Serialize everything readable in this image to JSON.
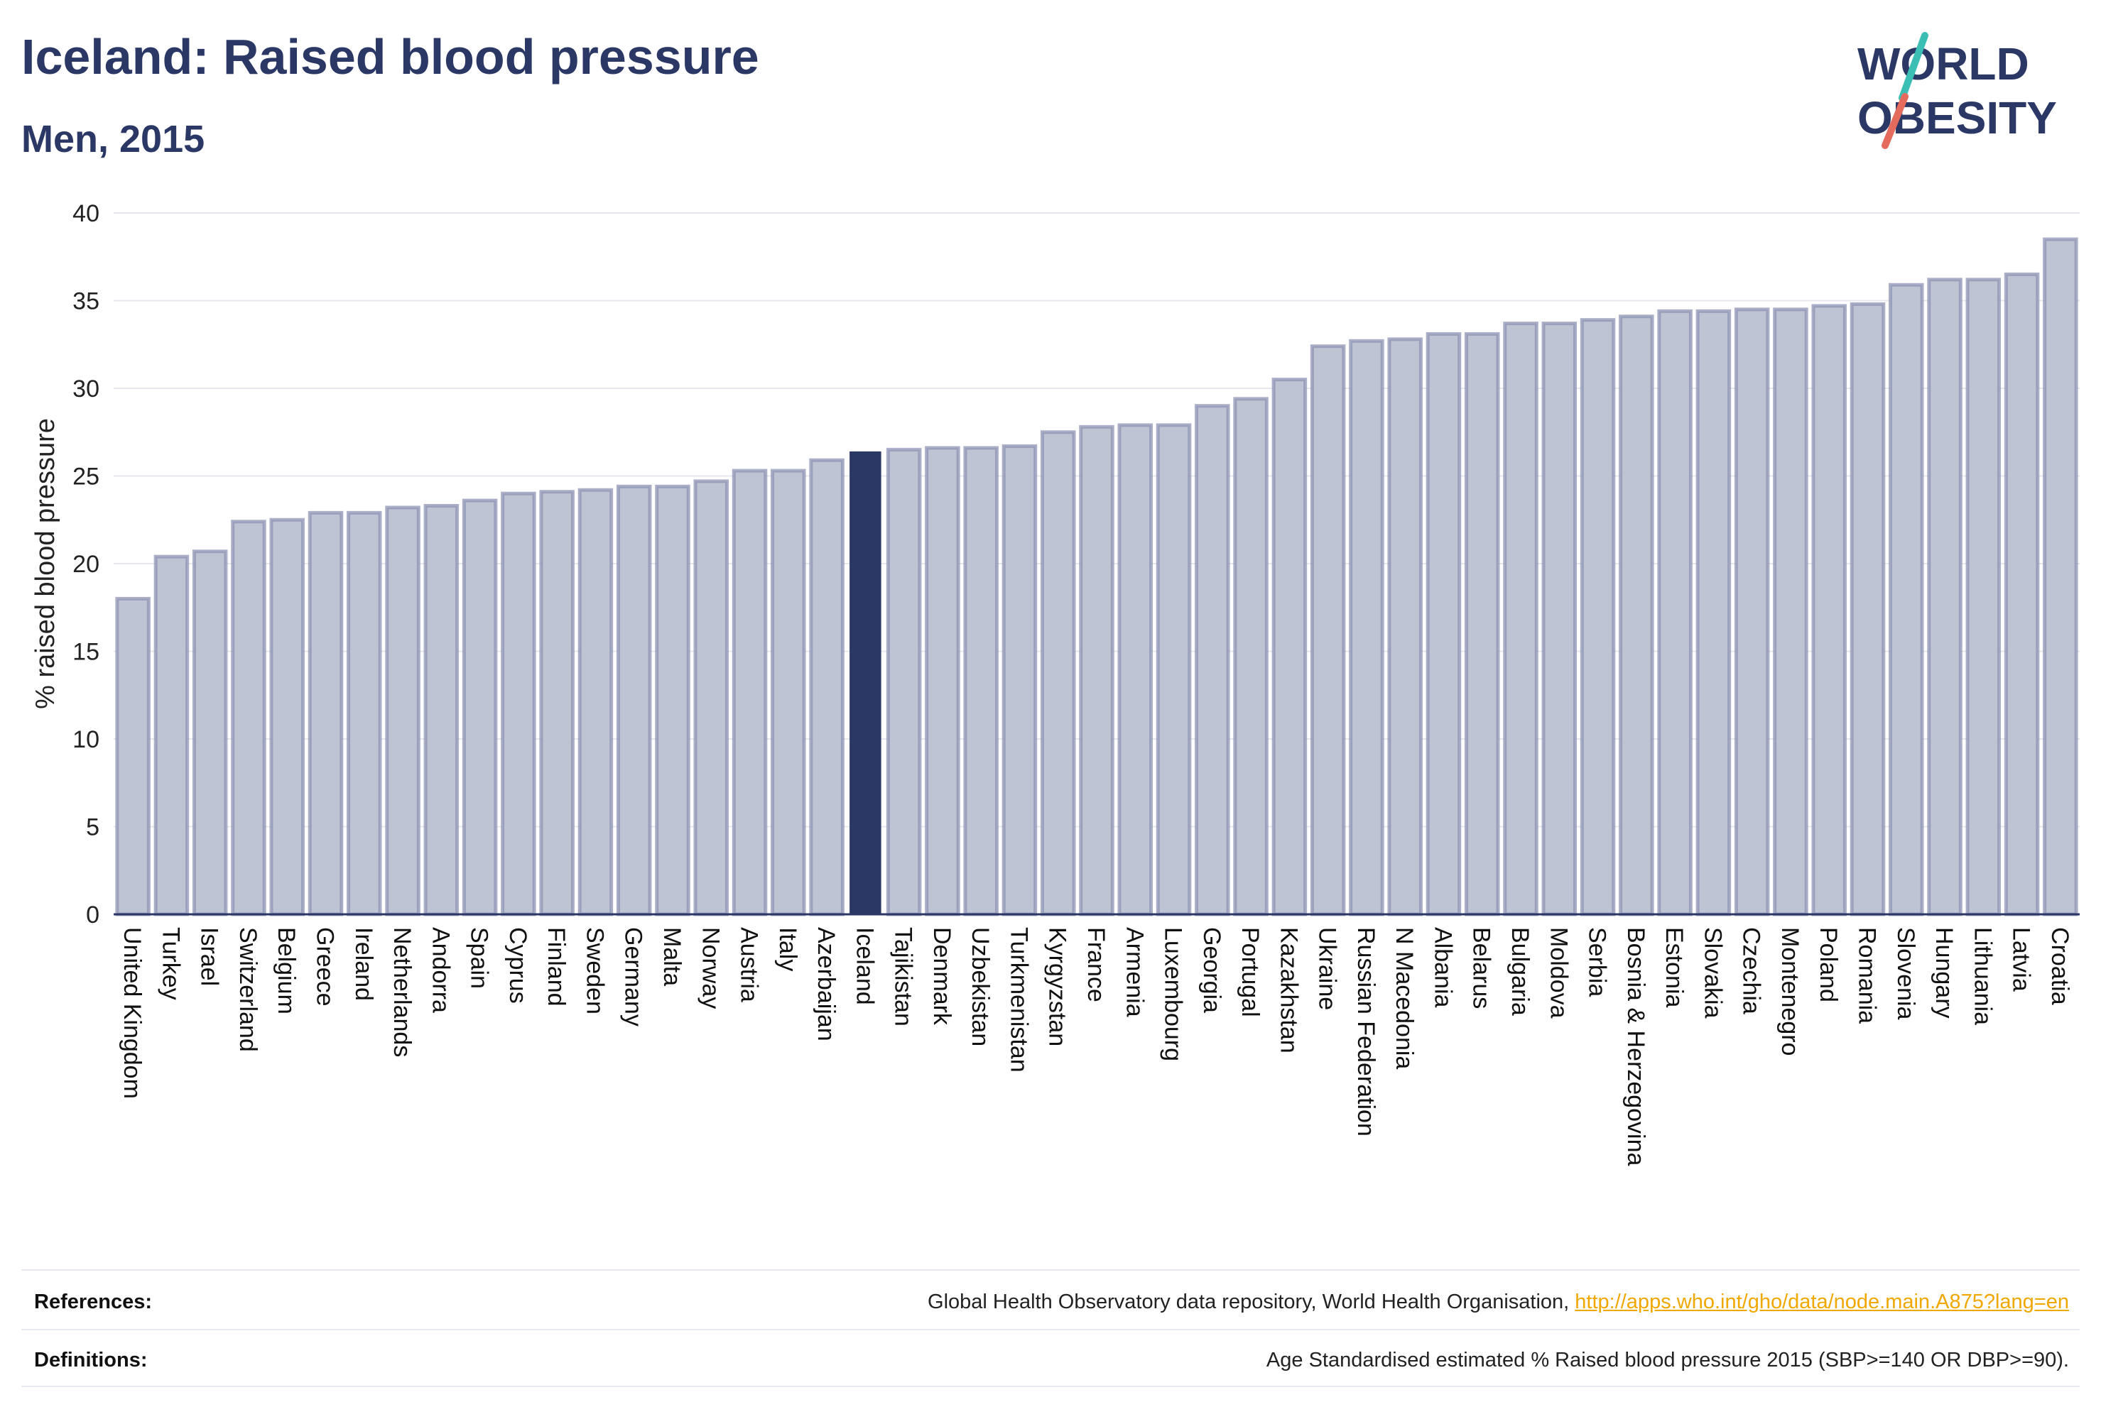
{
  "header": {
    "title": "Iceland: Raised blood pressure",
    "subtitle": "Men, 2015"
  },
  "logo": {
    "line1": "WORLD",
    "line2": "OBESITY",
    "accent_colors": [
      "#3bbfb4",
      "#e56b5d"
    ]
  },
  "colors": {
    "bar": "#bfc4d4",
    "bar_border": "#8d94b4",
    "highlight": "#2b3866",
    "text_primary": "#2b3866",
    "link": "#f0a800"
  },
  "chart_data": {
    "type": "bar",
    "highlight": "Iceland",
    "ylabel": "% raised blood pressure",
    "ylim": [
      0,
      40
    ],
    "yticks": [
      0,
      5,
      10,
      15,
      20,
      25,
      30,
      35,
      40
    ],
    "grid": true,
    "categories": [
      "United Kingdom",
      "Turkey",
      "Israel",
      "Switzerland",
      "Belgium",
      "Greece",
      "Ireland",
      "Netherlands",
      "Andorra",
      "Spain",
      "Cyprus",
      "Finland",
      "Sweden",
      "Germany",
      "Malta",
      "Norway",
      "Austria",
      "Italy",
      "Azerbaijan",
      "Iceland",
      "Tajikistan",
      "Denmark",
      "Uzbekistan",
      "Turkmenistan",
      "Kyrgyzstan",
      "France",
      "Armenia",
      "Luxembourg",
      "Georgia",
      "Portugal",
      "Kazakhstan",
      "Ukraine",
      "Russian Federation",
      "N Macedonia",
      "Albania",
      "Belarus",
      "Bulgaria",
      "Moldova",
      "Serbia",
      "Bosnia & Herzegovina",
      "Estonia",
      "Slovakia",
      "Czechia",
      "Montenegro",
      "Poland",
      "Romania",
      "Slovenia",
      "Hungary",
      "Lithuania",
      "Latvia",
      "Croatia"
    ],
    "values": [
      18.0,
      20.4,
      20.7,
      22.4,
      22.5,
      22.9,
      22.9,
      23.2,
      23.3,
      23.6,
      24.0,
      24.1,
      24.2,
      24.4,
      24.4,
      24.7,
      25.3,
      25.3,
      25.9,
      26.4,
      26.5,
      26.6,
      26.6,
      26.7,
      27.5,
      27.8,
      27.9,
      27.9,
      29.0,
      29.4,
      30.5,
      32.4,
      32.7,
      32.8,
      33.1,
      33.1,
      33.7,
      33.7,
      33.9,
      34.1,
      34.4,
      34.4,
      34.5,
      34.5,
      34.7,
      34.8,
      35.9,
      36.2,
      36.2,
      36.5,
      38.5
    ]
  },
  "footer": {
    "references_label": "References:",
    "references_text": "Global Health Observatory data repository, World Health Organisation, ",
    "references_link": "http://apps.who.int/gho/data/node.main.A875?lang=en",
    "definitions_label": "Definitions:",
    "definitions_text": "Age Standardised estimated % Raised blood pressure 2015 (SBP>=140 OR DBP>=90)."
  }
}
